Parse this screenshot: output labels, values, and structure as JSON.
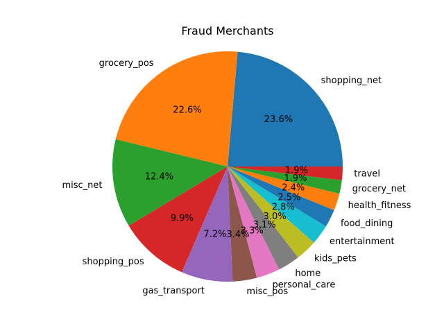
{
  "chart_data": {
    "type": "pie",
    "title": "Fraud Merchants",
    "start_angle_deg": 0,
    "direction": "counterclockwise",
    "slices": [
      {
        "label": "shopping_net",
        "value": 23.6,
        "pct_label": "23.6%",
        "color": "#1f77b4"
      },
      {
        "label": "grocery_pos",
        "value": 22.6,
        "pct_label": "22.6%",
        "color": "#ff7f0e"
      },
      {
        "label": "misc_net",
        "value": 12.4,
        "pct_label": "12.4%",
        "color": "#2ca02c"
      },
      {
        "label": "shopping_pos",
        "value": 9.9,
        "pct_label": "9.9%",
        "color": "#d62728"
      },
      {
        "label": "gas_transport",
        "value": 7.2,
        "pct_label": "7.2%",
        "color": "#9467bd"
      },
      {
        "label": "misc_pos",
        "value": 3.4,
        "pct_label": "3.4%",
        "color": "#8c564b"
      },
      {
        "label": "personal_care",
        "value": 3.3,
        "pct_label": "3.3%",
        "color": "#e377c2"
      },
      {
        "label": "home",
        "value": 3.1,
        "pct_label": "3.1%",
        "color": "#7f7f7f"
      },
      {
        "label": "kids_pets",
        "value": 3.0,
        "pct_label": "3.0%",
        "color": "#bcbd22"
      },
      {
        "label": "entertainment",
        "value": 2.8,
        "pct_label": "2.8%",
        "color": "#17becf"
      },
      {
        "label": "food_dining",
        "value": 2.5,
        "pct_label": "2.5%",
        "color": "#1f77b4"
      },
      {
        "label": "health_fitness",
        "value": 2.4,
        "pct_label": "2.4%",
        "color": "#ff7f0e"
      },
      {
        "label": "grocery_net",
        "value": 1.9,
        "pct_label": "1.9%",
        "color": "#2ca02c"
      },
      {
        "label": "travel",
        "value": 1.9,
        "pct_label": "1.9%",
        "color": "#d62728"
      }
    ]
  }
}
